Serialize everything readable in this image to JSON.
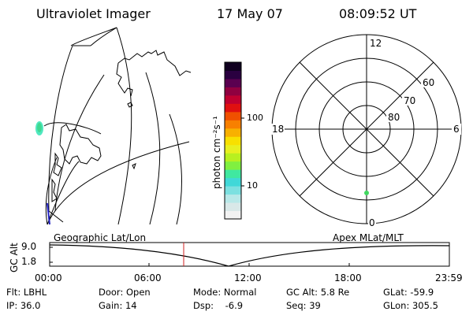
{
  "header": {
    "instrument": "Ultraviolet Imager",
    "date": "17 May 07",
    "time": "08:09:52 UT"
  },
  "colorbar": {
    "unit_label": "photon cm⁻²s⁻¹",
    "tick_100": "100",
    "tick_10": "10",
    "colors": [
      "#f2f2f2",
      "#d9e8e8",
      "#b8e8e8",
      "#7ce0e0",
      "#40d8d8",
      "#40e8a0",
      "#80f040",
      "#b8f020",
      "#e8f020",
      "#f8e000",
      "#f8b000",
      "#f88000",
      "#f05000",
      "#e01010",
      "#c00030",
      "#900040",
      "#5a0050",
      "#2a0040",
      "#100020"
    ]
  },
  "polar_plot": {
    "mlt_labels": {
      "top": "12",
      "left": "18",
      "right": "6",
      "bottom": "0"
    },
    "lat_labels": [
      "60",
      "70",
      "80"
    ]
  },
  "timeline": {
    "left_title": "Geographic Lat/Lon",
    "right_title": "Apex MLat/MLT",
    "axis_label": "GC Alt",
    "y_max": "9.0",
    "y_min": "1.8",
    "x_ticks": [
      "00:00",
      "06:00",
      "12:00",
      "18:00",
      "23:59"
    ]
  },
  "info": {
    "filter": "Flt: LBHL",
    "door": "Door: Open",
    "mode": "Mode: Normal",
    "gc_alt": "GC Alt: 5.8 Re",
    "glat": "GLat: -59.9",
    "ip": "IP: 36.0",
    "gain": "Gain: 14",
    "dsp": "Dsp:    -6.9",
    "seq": "Seq: 39",
    "glon": "GLon: 305.5"
  }
}
